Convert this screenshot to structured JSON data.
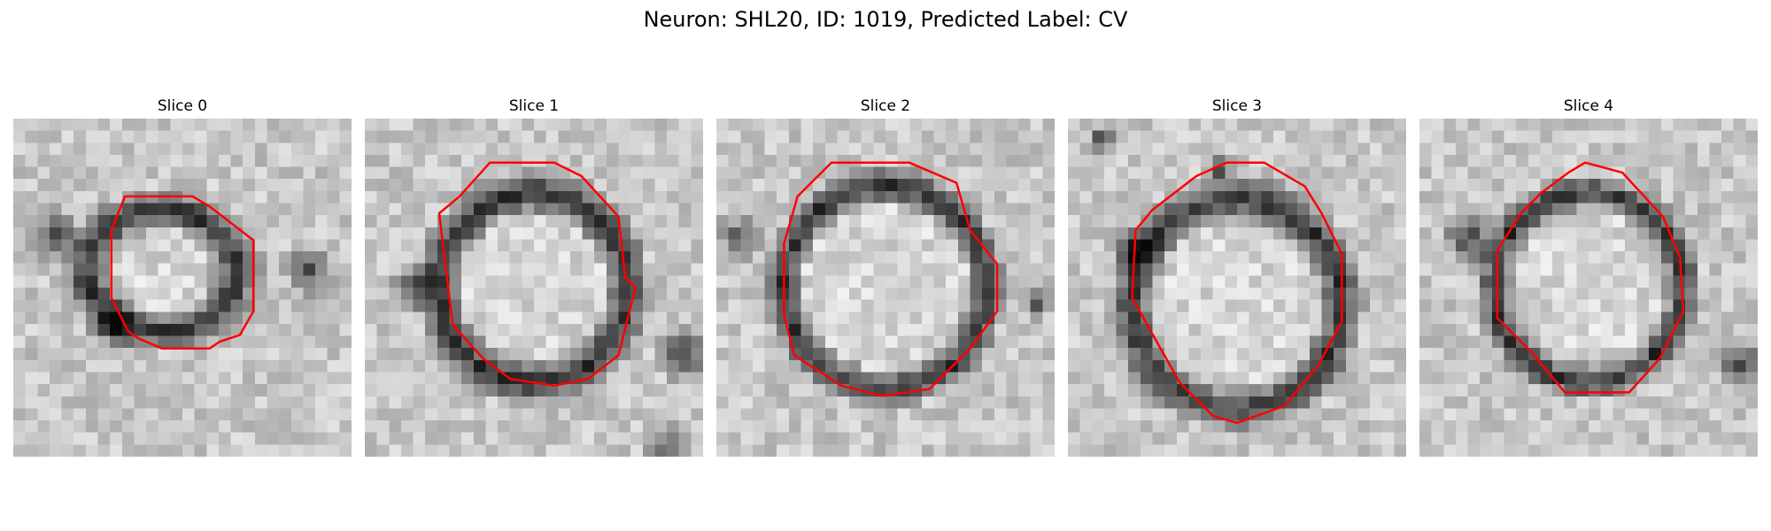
{
  "figure": {
    "title": "Neuron: SHL20, ID: 1019, Predicted Label: CV"
  },
  "panels": [
    {
      "title": "Slice 0",
      "contour_color": "#ff0000"
    },
    {
      "title": "Slice 1",
      "contour_color": "#ff0000"
    },
    {
      "title": "Slice 2",
      "contour_color": "#ff0000"
    },
    {
      "title": "Slice 3",
      "contour_color": "#ff0000"
    },
    {
      "title": "Slice 4",
      "contour_color": "#ff0000"
    }
  ]
}
